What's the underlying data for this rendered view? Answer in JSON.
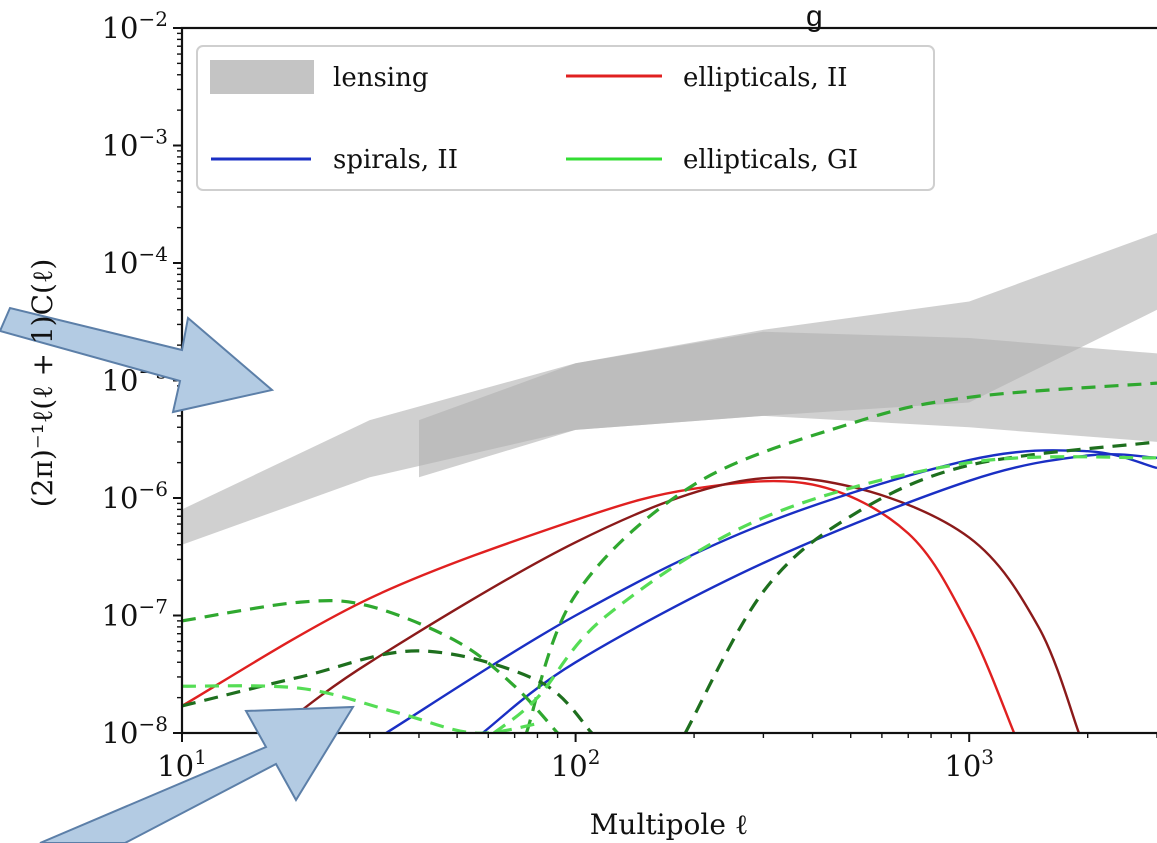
{
  "chart_data": {
    "type": "line",
    "x_scale": "log",
    "y_scale": "log",
    "xlim": [
      10,
      3000
    ],
    "ylim": [
      1e-08,
      0.01
    ],
    "xlabel": "Multipole ℓ",
    "ylabel": "(2π)⁻¹ℓ(ℓ + 1)C(ℓ)",
    "top_fragment": "g",
    "x_ticks": [
      {
        "value": 10,
        "label": "10",
        "exp": "1"
      },
      {
        "value": 100,
        "label": "10",
        "exp": "2"
      },
      {
        "value": 1000,
        "label": "10",
        "exp": "3"
      }
    ],
    "y_ticks": [
      {
        "value": 1e-08,
        "label": "10",
        "exp": "−8"
      },
      {
        "value": 1e-07,
        "label": "10",
        "exp": "−7"
      },
      {
        "value": 1e-06,
        "label": "10",
        "exp": "−6"
      },
      {
        "value": 1e-05,
        "label": "10",
        "exp": "−5"
      },
      {
        "value": 0.0001,
        "label": "10",
        "exp": "−4"
      },
      {
        "value": 0.001,
        "label": "10",
        "exp": "−3"
      },
      {
        "value": 0.01,
        "label": "10",
        "exp": "−2"
      }
    ],
    "legend": {
      "placement": "top-left",
      "entries": [
        {
          "label": "lensing",
          "style": "band",
          "color": "#c4c4c4"
        },
        {
          "label": "ellipticals, II",
          "style": "solid",
          "color": "#e02020"
        },
        {
          "label": "spirals, II",
          "style": "solid",
          "color": "#1a2fc4"
        },
        {
          "label": "ellipticals, GI",
          "style": "solid",
          "color": "#33dd33"
        }
      ]
    },
    "bands": [
      {
        "name": "lensing",
        "color": "#b0b0b0",
        "opacity": 0.6,
        "x": [
          10,
          30,
          100,
          300,
          1000,
          3000
        ],
        "lower": [
          4e-07,
          1.5e-06,
          3.8e-06,
          5e-06,
          6.5e-06,
          4e-05
        ],
        "upper": [
          8e-07,
          4.6e-06,
          1.4e-05,
          2.7e-05,
          4.7e-05,
          0.00018
        ]
      },
      {
        "name": "lensing",
        "color": "#b0b0b0",
        "opacity": 0.6,
        "x": [
          40,
          100,
          300,
          1000,
          3000
        ],
        "lower": [
          1.5e-06,
          3.8e-06,
          5e-06,
          4e-06,
          3e-06
        ],
        "upper": [
          4.6e-06,
          1.4e-05,
          2.6e-05,
          2.3e-05,
          1.7e-05
        ]
      }
    ],
    "series": [
      {
        "color": "#e02020",
        "dash": "none",
        "x": [
          10,
          30,
          100,
          200,
          400,
          700,
          1000,
          1300
        ],
        "y": [
          1.7e-08,
          1.4e-07,
          6.5e-07,
          1.2e-06,
          1.3e-06,
          5e-07,
          8e-08,
          1e-08
        ]
      },
      {
        "color": "#8b1a1a",
        "dash": "none",
        "x": [
          17,
          30,
          100,
          250,
          500,
          1000,
          1500,
          1900
        ],
        "y": [
          1e-08,
          4e-08,
          4.2e-07,
          1.35e-06,
          1.25e-06,
          4.6e-07,
          8e-08,
          1e-08
        ]
      },
      {
        "color": "#1a2fc4",
        "dash": "none",
        "x": [
          33,
          100,
          300,
          1000,
          2000,
          3000
        ],
        "y": [
          1e-08,
          1e-07,
          6e-07,
          2.1e-06,
          2.5e-06,
          1.8e-06
        ]
      },
      {
        "color": "#1a2fc4",
        "dash": "none",
        "x": [
          58,
          100,
          300,
          1000,
          2000,
          3000
        ],
        "y": [
          1e-08,
          4e-08,
          2.8e-07,
          1.4e-06,
          2.3e-06,
          2.2e-06
        ]
      },
      {
        "color": "#2fa82f",
        "dash": "14 9",
        "x": [
          10,
          20,
          30,
          50,
          70,
          90
        ],
        "y": [
          9e-08,
          1.3e-07,
          1.2e-07,
          6e-08,
          2.5e-08,
          1e-08
        ]
      },
      {
        "color": "#2fa82f",
        "dash": "14 9",
        "x": [
          75,
          100,
          200,
          500,
          1000,
          3000
        ],
        "y": [
          1e-08,
          1.5e-07,
          1.3e-06,
          4.3e-06,
          7.2e-06,
          9.5e-06
        ]
      },
      {
        "color": "#1e6f1e",
        "dash": "14 9",
        "x": [
          10,
          20,
          40,
          80,
          110
        ],
        "y": [
          1.7e-08,
          3e-08,
          5e-08,
          2.8e-08,
          1e-08
        ]
      },
      {
        "color": "#1e6f1e",
        "dash": "14 9",
        "x": [
          190,
          300,
          500,
          1000,
          3000
        ],
        "y": [
          1e-08,
          1.6e-07,
          7e-07,
          1.9e-06,
          3e-06
        ]
      },
      {
        "color": "#55dd55",
        "dash": "14 9",
        "x": [
          10,
          20,
          35,
          55,
          80
        ],
        "y": [
          2.5e-08,
          2.4e-08,
          1.5e-08,
          1e-08,
          1.2e-08
        ]
      },
      {
        "color": "#55dd55",
        "dash": "14 9",
        "x": [
          62,
          80,
          120,
          300,
          1000,
          3000
        ],
        "y": [
          1e-08,
          2e-08,
          1e-07,
          6.8e-07,
          2e-06,
          2.2e-06
        ]
      }
    ]
  }
}
